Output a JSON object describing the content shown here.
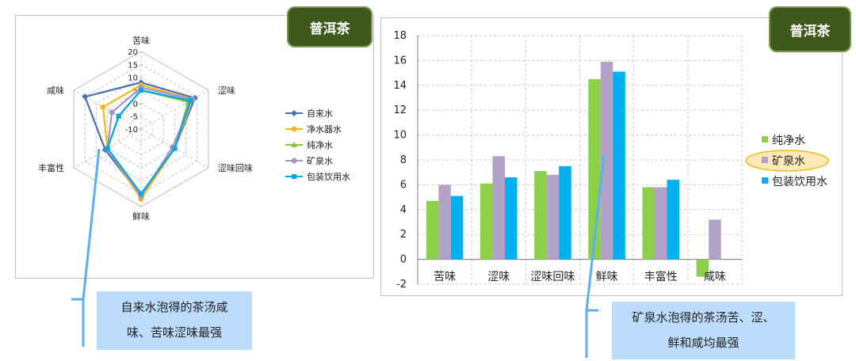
{
  "chart_data": [
    {
      "type": "radar",
      "axes": [
        "苦味",
        "涩味",
        "涩味回味",
        "鲜味",
        "丰富性",
        "咸味"
      ],
      "radial_ticks": [
        -10,
        -5,
        0,
        5,
        10,
        15,
        20
      ],
      "rlim": [
        -10,
        20
      ],
      "legend_placement": "right",
      "series": [
        {
          "name": "自来水",
          "color": "#4a72b0",
          "marker": "diamond",
          "values": [
            8,
            14,
            5,
            16,
            6,
            15
          ]
        },
        {
          "name": "净水器水",
          "color": "#f2b81c",
          "marker": "circle",
          "values": [
            7,
            13,
            5,
            17,
            5,
            7
          ]
        },
        {
          "name": "纯净水",
          "color": "#8cc63e",
          "marker": "triangle",
          "values": [
            5,
            11,
            5,
            15,
            5,
            0
          ]
        },
        {
          "name": "矿泉水",
          "color": "#a992c8",
          "marker": "circle",
          "values": [
            6,
            13,
            4,
            16,
            5,
            3
          ]
        },
        {
          "name": "包装饮用水",
          "color": "#00a9e6",
          "marker": "square",
          "values": [
            5,
            12,
            5,
            15,
            5,
            0
          ]
        }
      ]
    },
    {
      "type": "bar",
      "categories": [
        "苦味",
        "涩味",
        "涩味回味",
        "鲜味",
        "丰富性",
        "咸味"
      ],
      "ylim": [
        -2,
        18
      ],
      "yticks": [
        -2,
        0,
        2,
        4,
        6,
        8,
        10,
        12,
        14,
        16,
        18
      ],
      "grid": true,
      "legend_placement": "right",
      "highlighted_series": "矿泉水",
      "series": [
        {
          "name": "纯净水",
          "color": "#8cd04a",
          "values": [
            4.7,
            6.1,
            7.1,
            14.5,
            5.8,
            -1.4
          ]
        },
        {
          "name": "矿泉水",
          "color": "#b3a2c8",
          "values": [
            6.0,
            8.3,
            6.8,
            15.9,
            5.8,
            3.2
          ]
        },
        {
          "name": "包装饮用水",
          "color": "#00b0f0",
          "values": [
            5.1,
            6.6,
            7.5,
            15.1,
            6.4,
            null
          ]
        }
      ]
    }
  ],
  "tags": {
    "left": "普洱茶",
    "right": "普洱茶"
  },
  "callouts": {
    "left_line1": "自来水泡得的茶汤咸",
    "left_line2": "味、苦味涩味最强",
    "right_line1": "矿泉水泡得的茶汤苦、涩、",
    "right_line2": "鲜和咸均最强"
  }
}
